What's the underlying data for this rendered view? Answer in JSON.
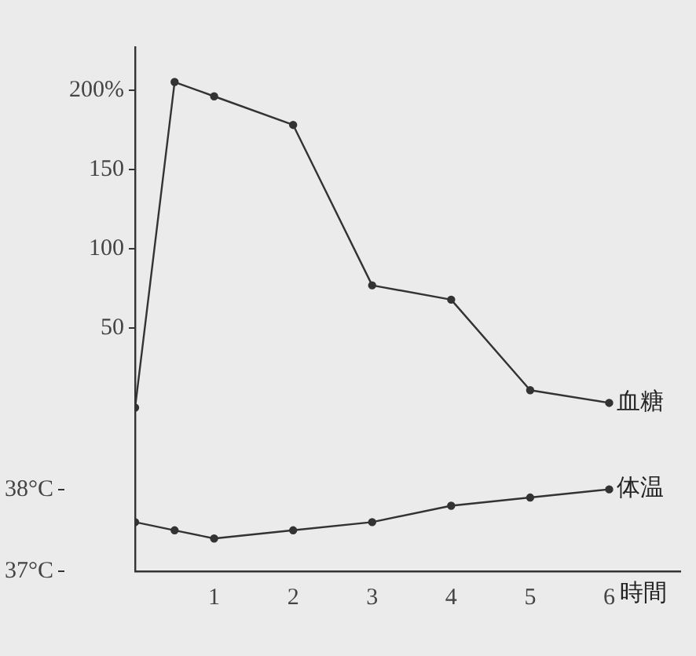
{
  "chart_data": {
    "type": "line",
    "xlabel": "時間",
    "xlim": [
      0,
      6.9
    ],
    "xticks": [
      1,
      2,
      3,
      4,
      5,
      6
    ],
    "ylim": [
      -103,
      227
    ],
    "yticks": [
      50,
      100,
      150,
      {
        "value": 200,
        "label": "200%"
      }
    ],
    "y2lim": [
      37,
      43.4
    ],
    "y2ticks": [
      {
        "value": 37,
        "label": "37°C"
      },
      {
        "value": 38,
        "label": "38°C"
      }
    ],
    "x": [
      0,
      0.5,
      1,
      2,
      3,
      4,
      5,
      6
    ],
    "series": [
      {
        "name": "血糖",
        "color": "#333333",
        "values": [
          0,
          205,
          196,
          178,
          77,
          68,
          11,
          3
        ]
      },
      {
        "name": "体温",
        "color": "#333333",
        "axis": "y2",
        "values": [
          37.6,
          37.5,
          37.4,
          37.5,
          37.6,
          37.8,
          37.9,
          38.0
        ]
      }
    ],
    "grid": false,
    "legend": false,
    "marker": "circle",
    "line_style": "solid"
  }
}
